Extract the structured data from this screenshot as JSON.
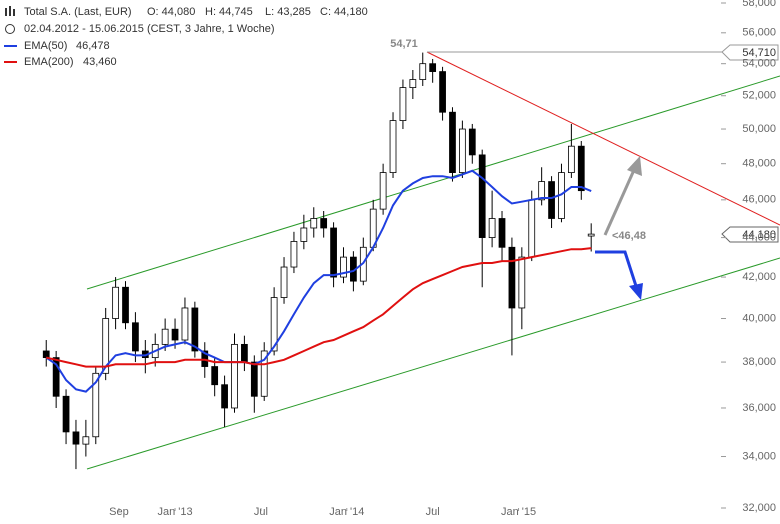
{
  "chart_data": {
    "type": "candlestick",
    "title": "Total S.A. (Last, EUR)",
    "ohlc_text": [
      "O: 44,080",
      "H: 44,745",
      "L: 43,285",
      "C: 44,180"
    ],
    "subtitle": "02.04.2012 - 15.06.2015 (CEST, 3 Jahre, 1 Woche)",
    "annotations": [
      "54,71",
      "<46,48",
      "54,710",
      "44,180"
    ],
    "log_scale": true,
    "color_up": "#ffffff",
    "color_down": "#000000",
    "x": [
      0,
      3,
      6,
      9,
      12,
      15,
      18,
      21,
      24,
      27,
      30,
      33,
      36,
      39,
      42,
      45,
      48,
      51,
      54,
      57,
      60,
      63,
      66,
      69,
      72,
      75,
      78,
      81,
      84,
      87,
      90,
      93,
      96,
      99,
      102,
      105,
      108,
      111,
      114,
      117,
      120,
      123,
      126,
      129,
      132,
      135,
      138,
      141,
      144,
      147,
      150,
      153,
      156,
      159,
      162,
      165
    ],
    "candles": {
      "open": [
        38500,
        38200,
        36500,
        35000,
        34500,
        34800,
        37500,
        40000,
        41500,
        39800,
        38500,
        38200,
        38800,
        39500,
        39000,
        40500,
        38500,
        37800,
        37000,
        36000,
        38800,
        38000,
        36500,
        38500,
        41000,
        42500,
        43800,
        44500,
        45000,
        44500,
        42000,
        43000,
        41800,
        43500,
        45500,
        47500,
        50500,
        52500,
        53000,
        54000,
        53500,
        51000,
        47500,
        50000,
        48500,
        44000,
        45000,
        43500,
        40500,
        43000,
        46000,
        47000,
        45000,
        47500,
        49000,
        44080
      ],
      "high": [
        39000,
        38500,
        36800,
        35500,
        35500,
        37800,
        40500,
        42000,
        41800,
        40300,
        39000,
        39300,
        40000,
        40000,
        41000,
        40800,
        38900,
        38200,
        37400,
        39300,
        39200,
        38300,
        38900,
        41500,
        43000,
        44300,
        45200,
        45600,
        45400,
        44800,
        43500,
        43300,
        44000,
        46000,
        48000,
        51000,
        53000,
        53600,
        54710,
        54300,
        53800,
        51300,
        50500,
        50300,
        48800,
        46500,
        45400,
        44000,
        43500,
        46500,
        47800,
        47300,
        48000,
        50300,
        49300,
        44745
      ],
      "low": [
        37800,
        36000,
        34500,
        33500,
        34000,
        34500,
        37200,
        39500,
        39500,
        38000,
        37500,
        37800,
        38500,
        38600,
        38800,
        38200,
        37300,
        36500,
        35200,
        35800,
        37600,
        35800,
        36300,
        38300,
        40700,
        42200,
        43400,
        44000,
        44000,
        41500,
        41700,
        41300,
        41600,
        43300,
        45200,
        47200,
        50000,
        51800,
        52600,
        52800,
        50500,
        47000,
        47200,
        48000,
        41500,
        43500,
        42800,
        38300,
        39500,
        42800,
        45700,
        44500,
        44800,
        47200,
        46000,
        43285
      ],
      "close": [
        38200,
        36500,
        35000,
        34500,
        34800,
        37500,
        40000,
        41500,
        39800,
        38500,
        38200,
        38800,
        39500,
        39000,
        40500,
        38500,
        37800,
        37000,
        36000,
        38800,
        38000,
        36500,
        38500,
        41000,
        42500,
        43800,
        44500,
        45000,
        44500,
        42000,
        43000,
        41800,
        43500,
        45500,
        47500,
        50500,
        52500,
        53000,
        54000,
        53500,
        51000,
        47500,
        50000,
        48500,
        44000,
        45000,
        43500,
        40500,
        43000,
        46000,
        47000,
        45000,
        47500,
        49000,
        46500,
        44180
      ]
    },
    "series": [
      {
        "name": "EMA(50)",
        "legend_label": "46,478",
        "color": "#1f3fe0",
        "values": [
          38200,
          37900,
          37200,
          36800,
          36700,
          37100,
          37800,
          38300,
          38400,
          38300,
          38300,
          38500,
          38700,
          38800,
          38900,
          38700,
          38400,
          38200,
          38000,
          38000,
          38000,
          37900,
          38100,
          38700,
          39400,
          40200,
          41000,
          41700,
          42100,
          42100,
          42200,
          42300,
          42700,
          43500,
          44500,
          45700,
          46500,
          46900,
          47200,
          47300,
          47300,
          47200,
          47400,
          47600,
          47200,
          46700,
          46200,
          45800,
          45900,
          46000,
          46100,
          46100,
          46300,
          46700,
          46700,
          46478
        ]
      },
      {
        "name": "EMA(200)",
        "legend_label": "43,460",
        "color": "#e01010",
        "values": [
          38200,
          38100,
          38000,
          37900,
          37800,
          37800,
          37800,
          37900,
          37900,
          37900,
          37900,
          38000,
          38000,
          38000,
          38100,
          38100,
          38100,
          38000,
          38000,
          38000,
          38000,
          37900,
          37900,
          38000,
          38100,
          38300,
          38500,
          38700,
          38900,
          39000,
          39200,
          39400,
          39600,
          39900,
          40200,
          40600,
          41000,
          41400,
          41700,
          41900,
          42100,
          42300,
          42500,
          42600,
          42700,
          42700,
          42800,
          42800,
          42900,
          43000,
          43100,
          43200,
          43300,
          43400,
          43400,
          43460
        ]
      }
    ],
    "xlim": [
      -14,
      204
    ],
    "xticks": [
      {
        "value": 22,
        "label": "Sep"
      },
      {
        "value": 39,
        "label": "Jan '13"
      },
      {
        "value": 65,
        "label": "Jul"
      },
      {
        "value": 91,
        "label": "Jan '14"
      },
      {
        "value": 117,
        "label": "Jul"
      },
      {
        "value": 143,
        "label": "Jan '15"
      }
    ],
    "ylim": [
      32000,
      58000
    ],
    "yticks": [
      {
        "value": 32000,
        "label": "32,000"
      },
      {
        "value": 34000,
        "label": "34,000"
      },
      {
        "value": 36000,
        "label": "36,000"
      },
      {
        "value": 38000,
        "label": "38,000"
      },
      {
        "value": 40000,
        "label": "40,000"
      },
      {
        "value": 42000,
        "label": "42,000"
      },
      {
        "value": 44000,
        "label": "44,000"
      },
      {
        "value": 46000,
        "label": "46,000"
      },
      {
        "value": 48000,
        "label": "48,000"
      },
      {
        "value": 50000,
        "label": "50,000"
      },
      {
        "value": 52000,
        "label": "52,000"
      },
      {
        "value": 54000,
        "label": "54,000"
      },
      {
        "value": 56000,
        "label": "56,000"
      },
      {
        "value": 58000,
        "label": "58,000"
      }
    ]
  }
}
